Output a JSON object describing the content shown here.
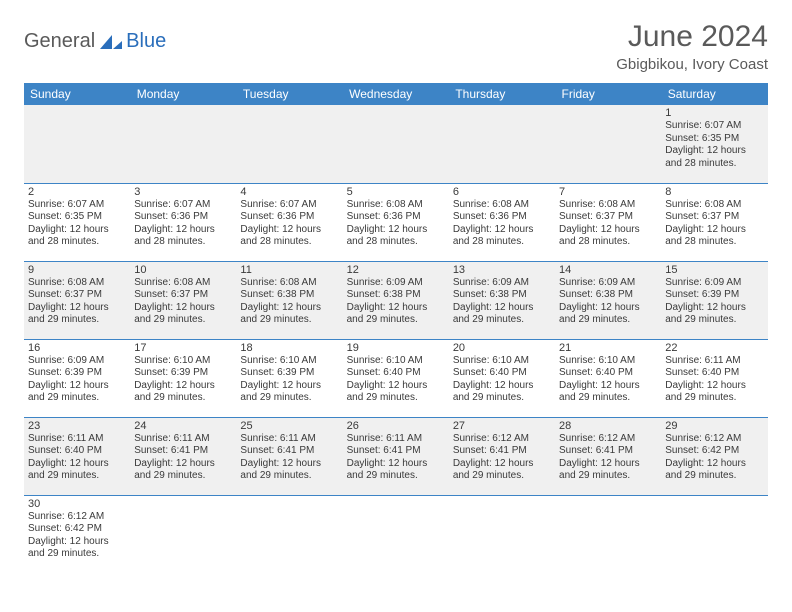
{
  "logo": {
    "part1": "General",
    "part2": "Blue"
  },
  "title": "June 2024",
  "location": "Gbigbikou, Ivory Coast",
  "colors": {
    "header_bg": "#3d84c6",
    "header_text": "#ffffff",
    "row_alt_bg": "#f0f0f0",
    "row_bg": "#ffffff",
    "text": "#3a3a3a",
    "logo_gray": "#5a5a5a",
    "logo_blue": "#2a6ebb",
    "border": "#3d84c6"
  },
  "weekdays": [
    "Sunday",
    "Monday",
    "Tuesday",
    "Wednesday",
    "Thursday",
    "Friday",
    "Saturday"
  ],
  "weeks": [
    [
      null,
      null,
      null,
      null,
      null,
      null,
      {
        "n": "1",
        "sr": "Sunrise: 6:07 AM",
        "ss": "Sunset: 6:35 PM",
        "dl": "Daylight: 12 hours and 28 minutes."
      }
    ],
    [
      {
        "n": "2",
        "sr": "Sunrise: 6:07 AM",
        "ss": "Sunset: 6:35 PM",
        "dl": "Daylight: 12 hours and 28 minutes."
      },
      {
        "n": "3",
        "sr": "Sunrise: 6:07 AM",
        "ss": "Sunset: 6:36 PM",
        "dl": "Daylight: 12 hours and 28 minutes."
      },
      {
        "n": "4",
        "sr": "Sunrise: 6:07 AM",
        "ss": "Sunset: 6:36 PM",
        "dl": "Daylight: 12 hours and 28 minutes."
      },
      {
        "n": "5",
        "sr": "Sunrise: 6:08 AM",
        "ss": "Sunset: 6:36 PM",
        "dl": "Daylight: 12 hours and 28 minutes."
      },
      {
        "n": "6",
        "sr": "Sunrise: 6:08 AM",
        "ss": "Sunset: 6:36 PM",
        "dl": "Daylight: 12 hours and 28 minutes."
      },
      {
        "n": "7",
        "sr": "Sunrise: 6:08 AM",
        "ss": "Sunset: 6:37 PM",
        "dl": "Daylight: 12 hours and 28 minutes."
      },
      {
        "n": "8",
        "sr": "Sunrise: 6:08 AM",
        "ss": "Sunset: 6:37 PM",
        "dl": "Daylight: 12 hours and 28 minutes."
      }
    ],
    [
      {
        "n": "9",
        "sr": "Sunrise: 6:08 AM",
        "ss": "Sunset: 6:37 PM",
        "dl": "Daylight: 12 hours and 29 minutes."
      },
      {
        "n": "10",
        "sr": "Sunrise: 6:08 AM",
        "ss": "Sunset: 6:37 PM",
        "dl": "Daylight: 12 hours and 29 minutes."
      },
      {
        "n": "11",
        "sr": "Sunrise: 6:08 AM",
        "ss": "Sunset: 6:38 PM",
        "dl": "Daylight: 12 hours and 29 minutes."
      },
      {
        "n": "12",
        "sr": "Sunrise: 6:09 AM",
        "ss": "Sunset: 6:38 PM",
        "dl": "Daylight: 12 hours and 29 minutes."
      },
      {
        "n": "13",
        "sr": "Sunrise: 6:09 AM",
        "ss": "Sunset: 6:38 PM",
        "dl": "Daylight: 12 hours and 29 minutes."
      },
      {
        "n": "14",
        "sr": "Sunrise: 6:09 AM",
        "ss": "Sunset: 6:38 PM",
        "dl": "Daylight: 12 hours and 29 minutes."
      },
      {
        "n": "15",
        "sr": "Sunrise: 6:09 AM",
        "ss": "Sunset: 6:39 PM",
        "dl": "Daylight: 12 hours and 29 minutes."
      }
    ],
    [
      {
        "n": "16",
        "sr": "Sunrise: 6:09 AM",
        "ss": "Sunset: 6:39 PM",
        "dl": "Daylight: 12 hours and 29 minutes."
      },
      {
        "n": "17",
        "sr": "Sunrise: 6:10 AM",
        "ss": "Sunset: 6:39 PM",
        "dl": "Daylight: 12 hours and 29 minutes."
      },
      {
        "n": "18",
        "sr": "Sunrise: 6:10 AM",
        "ss": "Sunset: 6:39 PM",
        "dl": "Daylight: 12 hours and 29 minutes."
      },
      {
        "n": "19",
        "sr": "Sunrise: 6:10 AM",
        "ss": "Sunset: 6:40 PM",
        "dl": "Daylight: 12 hours and 29 minutes."
      },
      {
        "n": "20",
        "sr": "Sunrise: 6:10 AM",
        "ss": "Sunset: 6:40 PM",
        "dl": "Daylight: 12 hours and 29 minutes."
      },
      {
        "n": "21",
        "sr": "Sunrise: 6:10 AM",
        "ss": "Sunset: 6:40 PM",
        "dl": "Daylight: 12 hours and 29 minutes."
      },
      {
        "n": "22",
        "sr": "Sunrise: 6:11 AM",
        "ss": "Sunset: 6:40 PM",
        "dl": "Daylight: 12 hours and 29 minutes."
      }
    ],
    [
      {
        "n": "23",
        "sr": "Sunrise: 6:11 AM",
        "ss": "Sunset: 6:40 PM",
        "dl": "Daylight: 12 hours and 29 minutes."
      },
      {
        "n": "24",
        "sr": "Sunrise: 6:11 AM",
        "ss": "Sunset: 6:41 PM",
        "dl": "Daylight: 12 hours and 29 minutes."
      },
      {
        "n": "25",
        "sr": "Sunrise: 6:11 AM",
        "ss": "Sunset: 6:41 PM",
        "dl": "Daylight: 12 hours and 29 minutes."
      },
      {
        "n": "26",
        "sr": "Sunrise: 6:11 AM",
        "ss": "Sunset: 6:41 PM",
        "dl": "Daylight: 12 hours and 29 minutes."
      },
      {
        "n": "27",
        "sr": "Sunrise: 6:12 AM",
        "ss": "Sunset: 6:41 PM",
        "dl": "Daylight: 12 hours and 29 minutes."
      },
      {
        "n": "28",
        "sr": "Sunrise: 6:12 AM",
        "ss": "Sunset: 6:41 PM",
        "dl": "Daylight: 12 hours and 29 minutes."
      },
      {
        "n": "29",
        "sr": "Sunrise: 6:12 AM",
        "ss": "Sunset: 6:42 PM",
        "dl": "Daylight: 12 hours and 29 minutes."
      }
    ],
    [
      {
        "n": "30",
        "sr": "Sunrise: 6:12 AM",
        "ss": "Sunset: 6:42 PM",
        "dl": "Daylight: 12 hours and 29 minutes."
      },
      null,
      null,
      null,
      null,
      null,
      null
    ]
  ]
}
